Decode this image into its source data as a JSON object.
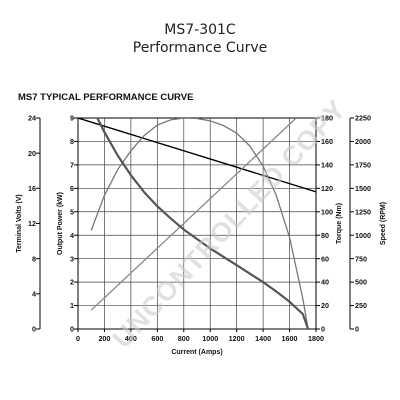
{
  "page": {
    "title": "MS7-301C",
    "subtitle": "Performance Curve",
    "chart_heading": "MS7 TYPICAL PERFORMANCE CURVE",
    "watermark": "UNCONTROLLED COPY"
  },
  "chart_data": {
    "type": "line",
    "title": "MS7 TYPICAL PERFORMANCE CURVE",
    "xlabel": "Current (Amps)",
    "xlim": [
      0,
      1800
    ],
    "x_ticks": [
      0,
      200,
      400,
      600,
      800,
      1000,
      1200,
      1400,
      1600,
      1800
    ],
    "grid": true,
    "axes": [
      {
        "key": "volts",
        "label": "Terminal Volts (V)",
        "side": "left",
        "lim": [
          0,
          24
        ],
        "ticks": [
          0,
          4,
          8,
          12,
          16,
          20,
          24
        ]
      },
      {
        "key": "power",
        "label": "Output Power (kW)",
        "side": "left",
        "lim": [
          0,
          9
        ],
        "ticks": [
          0,
          1,
          2,
          3,
          4,
          5,
          6,
          7,
          8,
          9
        ]
      },
      {
        "key": "torque",
        "label": "Torque (Nm)",
        "side": "right",
        "lim": [
          0,
          180
        ],
        "ticks": [
          0,
          20,
          40,
          60,
          80,
          100,
          120,
          140,
          160,
          180
        ]
      },
      {
        "key": "speed",
        "label": "Speed (RPM)",
        "side": "right",
        "lim": [
          0,
          2250
        ],
        "ticks": [
          0,
          250,
          500,
          750,
          1000,
          1250,
          1500,
          1750,
          2000,
          2250
        ]
      }
    ],
    "series": [
      {
        "axis": "volts",
        "color": "#000000",
        "x": [
          0,
          1800
        ],
        "y": [
          24.0,
          15.6
        ]
      },
      {
        "axis": "power",
        "color": "#777777",
        "x": [
          100,
          200,
          300,
          400,
          500,
          600,
          700,
          800,
          900,
          1000,
          1100,
          1200,
          1300,
          1400,
          1500,
          1600,
          1700,
          1740
        ],
        "y": [
          4.2,
          5.7,
          6.8,
          7.6,
          8.25,
          8.7,
          8.92,
          9.0,
          8.98,
          8.88,
          8.68,
          8.35,
          7.8,
          6.95,
          5.7,
          3.9,
          1.3,
          0.0
        ]
      },
      {
        "axis": "torque",
        "color": "#888888",
        "x": [
          100,
          1650
        ],
        "y": [
          16,
          180
        ]
      },
      {
        "axis": "speed",
        "color": "#555555",
        "x": [
          100,
          200,
          300,
          400,
          500,
          600,
          700,
          800,
          900,
          1000,
          1100,
          1200,
          1300,
          1400,
          1500,
          1600,
          1700,
          1740
        ],
        "y": [
          2380,
          2100,
          1850,
          1640,
          1460,
          1310,
          1180,
          1060,
          960,
          860,
          770,
          680,
          590,
          500,
          400,
          290,
          160,
          0
        ]
      }
    ]
  }
}
